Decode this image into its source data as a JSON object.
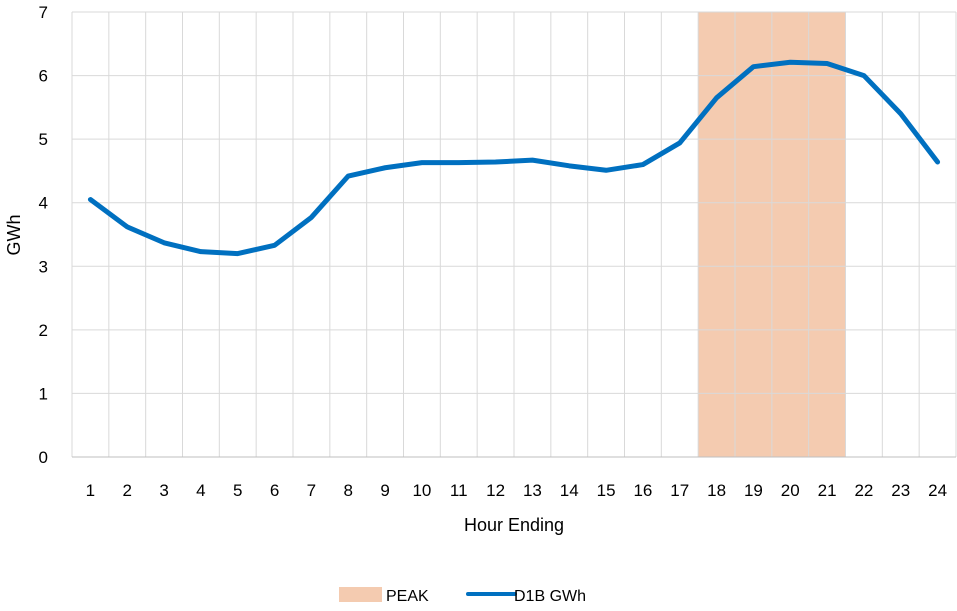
{
  "chart_data": {
    "type": "line",
    "title": "",
    "xlabel": "Hour Ending",
    "ylabel": "GWh",
    "categories": [
      "1",
      "2",
      "3",
      "4",
      "5",
      "6",
      "7",
      "8",
      "9",
      "10",
      "11",
      "12",
      "13",
      "14",
      "15",
      "16",
      "17",
      "18",
      "19",
      "20",
      "21",
      "22",
      "23",
      "24"
    ],
    "series": [
      {
        "name": "D1B GWh",
        "color": "#0070c0",
        "values": [
          4.05,
          3.62,
          3.37,
          3.23,
          3.2,
          3.33,
          3.77,
          4.42,
          4.55,
          4.63,
          4.63,
          4.64,
          4.67,
          4.58,
          4.51,
          4.6,
          4.94,
          5.65,
          6.14,
          6.21,
          6.19,
          6.0,
          5.4,
          4.64
        ]
      }
    ],
    "peak_band": {
      "name": "PEAK",
      "color": "#f4cbb0",
      "start_hour": "18",
      "end_hour": "21"
    },
    "ylim": [
      0,
      7
    ],
    "yticks": [
      "0",
      "1",
      "2",
      "3",
      "4",
      "5",
      "6",
      "7"
    ],
    "grid": true,
    "legend_position": "bottom"
  }
}
